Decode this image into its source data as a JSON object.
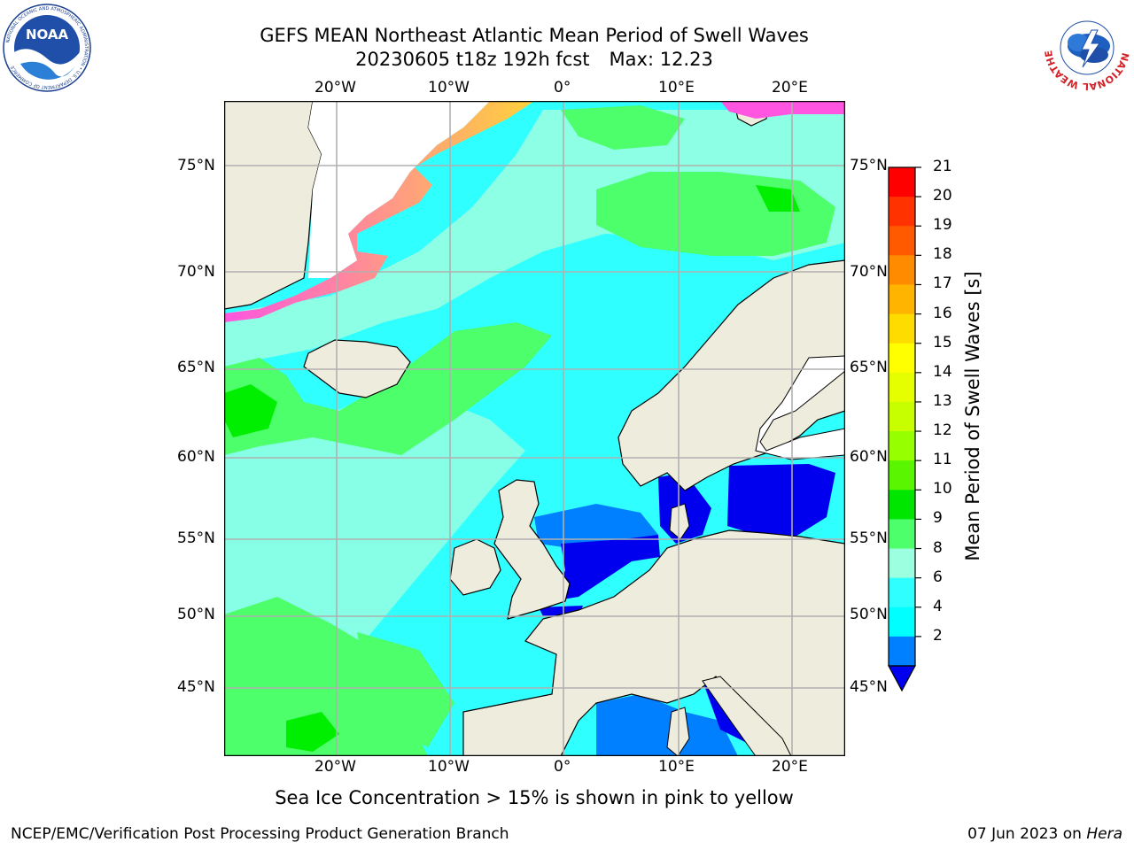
{
  "title": {
    "line1": "GEFS MEAN Northeast Atlantic Mean Period of Swell Waves",
    "line2_left": "20230605 t18z 192h fcst",
    "line2_right": "Max: 12.23"
  },
  "logos": {
    "left": "noaa-logo",
    "left_text": "NOAA",
    "left_ring_text": "NATIONAL OCEANIC AND ATMOSPHERIC ADMINISTRATION • U.S. DEPARTMENT OF COMMERCE",
    "right": "nws-logo",
    "right_ring_text": "NATIONAL WEATHER SERVICE"
  },
  "map": {
    "lon_ticks_top": [
      "20°W",
      "10°W",
      "0°",
      "10°E",
      "20°E"
    ],
    "lon_ticks_bottom": [
      "20°W",
      "10°W",
      "0°",
      "10°E",
      "20°E"
    ],
    "lat_ticks_left": [
      "75°N",
      "70°N",
      "65°N",
      "60°N",
      "55°N",
      "50°N",
      "45°N"
    ],
    "lat_ticks_right": [
      "75°N",
      "70°N",
      "65°N",
      "60°N",
      "55°N",
      "50°N",
      "45°N"
    ],
    "colors": {
      "land": "#eeecdc",
      "swell_2_4": "#0000ee",
      "swell_4_6": "#007fff",
      "swell_6_8": "#00ffff",
      "swell_8_9": "#2fffff",
      "swell_9_10": "#9cffe0",
      "swell_10_11": "#4dff6b",
      "swell_11_12": "#00ee00",
      "ice_low": "#ff55e0",
      "ice_high": "#ffd23a"
    }
  },
  "colorbar": {
    "label": "Mean Period of Swell Waves [s]",
    "ticks": [
      "21",
      "20",
      "19",
      "18",
      "17",
      "16",
      "15",
      "14",
      "13",
      "12",
      "11",
      "10",
      "9",
      "8",
      "6",
      "4",
      "2"
    ],
    "colors": [
      "#ff0000",
      "#ff3200",
      "#ff5a00",
      "#ff8c00",
      "#ffb400",
      "#ffdc00",
      "#ffff00",
      "#e6ff00",
      "#c8ff00",
      "#96ff00",
      "#5af500",
      "#00e600",
      "#4dff6b",
      "#9cffe0",
      "#2fffff",
      "#00ffff",
      "#007fff"
    ],
    "extend_color": "#0000ee"
  },
  "note": "Sea Ice Concentration > 15% is shown in pink to yellow",
  "footer": {
    "left": "NCEP/EMC/Verification Post Processing Product Generation Branch",
    "right_prefix": "07 Jun 2023 on ",
    "right_host": "Hera"
  }
}
